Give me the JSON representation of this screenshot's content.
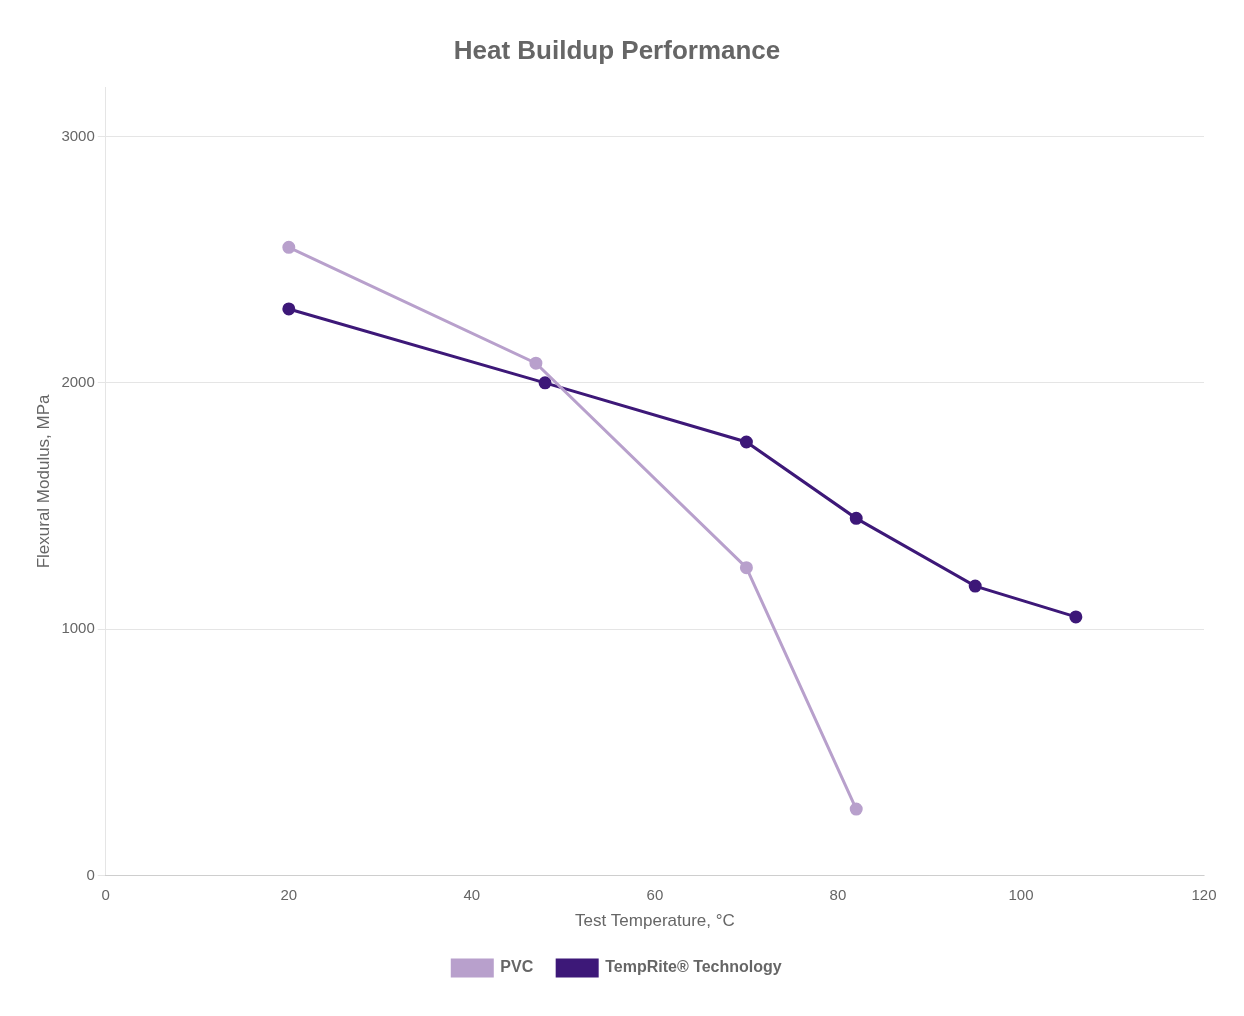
{
  "chart_data": {
    "type": "line",
    "title": "Heat Buildup Performance",
    "xlabel": "Test Temperature, °C",
    "ylabel": "Flexural Modulus, MPa",
    "series": [
      {
        "name": "PVC",
        "color": "#b8a0cc",
        "marker": "circle",
        "line_style": "solid",
        "x": [
          20,
          47,
          70,
          82
        ],
        "values": [
          2550,
          2080,
          1250,
          270
        ]
      },
      {
        "name": "TempRite® Technology",
        "color": "#3d1878",
        "marker": "circle",
        "line_style": "solid",
        "x": [
          20,
          48,
          70,
          82,
          95,
          106
        ],
        "values": [
          2300,
          2000,
          1760,
          1450,
          1175,
          1050
        ]
      }
    ],
    "xlim": [
      0,
      120
    ],
    "ylim": [
      0,
      3200
    ],
    "xticks": [
      0,
      20,
      40,
      60,
      80,
      100,
      120
    ],
    "yticks": [
      0,
      1000,
      2000,
      3000
    ],
    "grid": "y",
    "legend": "bottom"
  }
}
